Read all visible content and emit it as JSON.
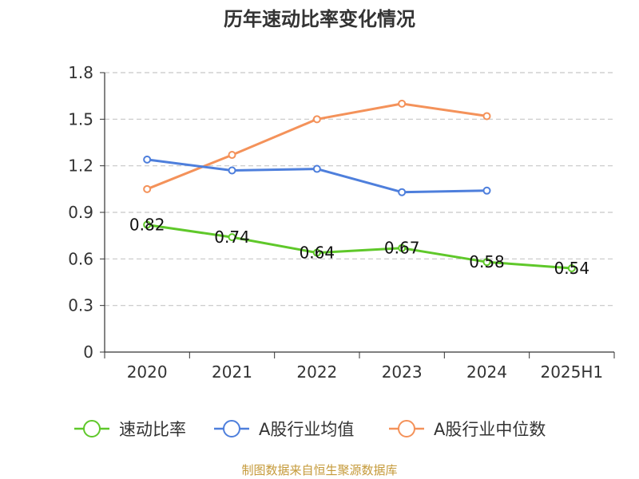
{
  "chart_data": {
    "type": "line",
    "title": "历年速动比率变化情况",
    "categories": [
      "2020",
      "2021",
      "2022",
      "2023",
      "2024",
      "2025H1"
    ],
    "ylim": [
      0,
      1.8
    ],
    "yticks": [
      "0",
      "0.3",
      "0.6",
      "0.9",
      "1.2",
      "1.5",
      "1.8"
    ],
    "grid": true,
    "legend_position": "bottom",
    "series": [
      {
        "name": "速动比率",
        "color": "#5fc82a",
        "values": [
          0.82,
          0.74,
          0.64,
          0.67,
          0.58,
          0.54
        ],
        "labels": [
          "0.82",
          "0.74",
          "0.64",
          "0.67",
          "0.58",
          "0.54"
        ]
      },
      {
        "name": "A股行业均值",
        "color": "#4e7fdc",
        "values": [
          1.24,
          1.17,
          1.18,
          1.03,
          1.04,
          null
        ]
      },
      {
        "name": "A股行业中位数",
        "color": "#f4925a",
        "values": [
          1.05,
          1.27,
          1.5,
          1.6,
          1.52,
          null
        ]
      }
    ],
    "source": "制图数据来自恒生聚源数据库"
  }
}
